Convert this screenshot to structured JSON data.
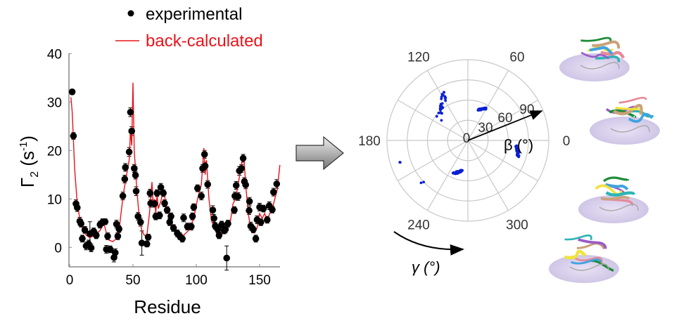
{
  "chart_data": [
    {
      "type": "scatter",
      "xlabel": "Residue",
      "ylabel": "Γ",
      "ylabel_sub": "2",
      "ylabel_unit": " (s",
      "ylabel_sup": "-1",
      "ylabel_close": ")",
      "xlim": [
        0,
        166
      ],
      "ylim": [
        -4,
        40
      ],
      "xticks": [
        0,
        50,
        100,
        150
      ],
      "yticks": [
        0,
        10,
        20,
        30,
        40
      ],
      "grid": false,
      "legend_position": "top",
      "series": [
        {
          "name": "experimental",
          "marker": "•",
          "color": "#000000",
          "points": [
            [
              2,
              32.1,
              0.5
            ],
            [
              3,
              23.0,
              0.7
            ],
            [
              5,
              9.0,
              0.8
            ],
            [
              6,
              8.2,
              0.8
            ],
            [
              8,
              5.4,
              0.8
            ],
            [
              9,
              4.9,
              0.7
            ],
            [
              10,
              1.8,
              0.7
            ],
            [
              12,
              3.6,
              0.7
            ],
            [
              13,
              0.3,
              0.8
            ],
            [
              15,
              0.7,
              0.8
            ],
            [
              16,
              2.8,
              2.5
            ],
            [
              17,
              -0.1,
              0.8
            ],
            [
              19,
              3.3,
              0.7
            ],
            [
              21,
              2.5,
              0.7
            ],
            [
              24,
              4.7,
              0.7
            ],
            [
              26,
              5.2,
              0.7
            ],
            [
              28,
              5.3,
              0.6
            ],
            [
              29,
              -0.4,
              0.8
            ],
            [
              30,
              2.3,
              0.7
            ],
            [
              32,
              -0.4,
              0.7
            ],
            [
              35,
              -2.1,
              0.9
            ],
            [
              36,
              -1.1,
              0.8
            ],
            [
              37,
              4.8,
              0.8
            ],
            [
              38,
              2.3,
              0.7
            ],
            [
              39,
              3.8,
              0.7
            ],
            [
              42,
              10.6,
              0.8
            ],
            [
              43.5,
              14.1,
              0.8
            ],
            [
              44,
              16.5,
              0.8
            ],
            [
              47,
              19.7,
              0.9
            ],
            [
              48,
              27.9,
              0.9
            ],
            [
              49,
              24.0,
              0.9
            ],
            [
              51,
              16.3,
              0.8
            ],
            [
              52,
              14.9,
              0.8
            ],
            [
              52.5,
              11.6,
              0.9
            ],
            [
              54,
              6.4,
              0.8
            ],
            [
              56,
              5.2,
              0.8
            ],
            [
              57,
              0.9,
              2.5
            ],
            [
              61,
              0.7,
              0.6
            ],
            [
              62,
              2.1,
              0.6
            ],
            [
              63.5,
              11.2,
              0.8
            ],
            [
              64,
              9.1,
              0.8
            ],
            [
              67,
              9.0,
              0.7
            ],
            [
              68,
              6.4,
              0.7
            ],
            [
              69,
              11.2,
              0.7
            ],
            [
              71,
              6.6,
              0.7
            ],
            [
              72,
              12.4,
              0.8
            ],
            [
              74,
              11.2,
              0.7
            ],
            [
              75,
              9.1,
              0.7
            ],
            [
              77,
              7.7,
              0.7
            ],
            [
              79,
              5.2,
              0.7
            ],
            [
              80,
              6.4,
              0.7
            ],
            [
              82,
              4.0,
              0.7
            ],
            [
              85,
              2.9,
              0.7
            ],
            [
              87,
              2.3,
              0.7
            ],
            [
              89,
              1.8,
              0.7
            ],
            [
              90,
              6.1,
              0.8
            ],
            [
              93,
              4.3,
              0.7
            ],
            [
              96,
              4.3,
              0.7
            ],
            [
              97,
              6.4,
              0.7
            ],
            [
              98,
              8.3,
              0.7
            ],
            [
              101,
              12.2,
              0.7
            ],
            [
              104,
              10.6,
              0.8
            ],
            [
              105,
              16.3,
              0.8
            ],
            [
              106.5,
              19.2,
              0.8
            ],
            [
              107,
              16.8,
              0.8
            ],
            [
              109,
              13.0,
              0.8
            ],
            [
              113,
              7.7,
              0.9
            ],
            [
              114,
              6.0,
              0.8
            ],
            [
              115,
              4.4,
              0.7
            ],
            [
              117,
              3.7,
              0.7
            ],
            [
              118,
              2.5,
              0.7
            ],
            [
              120,
              4.7,
              0.7
            ],
            [
              122,
              3.5,
              0.7
            ],
            [
              123,
              3.7,
              0.7
            ],
            [
              124,
              -2.2,
              2.5
            ],
            [
              125,
              4.9,
              0.7
            ],
            [
              130,
              7.7,
              0.7
            ],
            [
              130.5,
              10.6,
              0.8
            ],
            [
              131.5,
              12.8,
              0.8
            ],
            [
              133,
              10.5,
              0.8
            ],
            [
              134,
              15.8,
              0.9
            ],
            [
              135.7,
              16.3,
              0.8
            ],
            [
              137,
              18.4,
              0.8
            ],
            [
              138,
              13.6,
              0.8
            ],
            [
              139,
              12.9,
              0.8
            ],
            [
              141.7,
              7.6,
              0.8
            ],
            [
              142,
              9.5,
              0.8
            ],
            [
              143,
              4.4,
              0.8
            ],
            [
              145,
              3.7,
              0.7
            ],
            [
              147,
              1.8,
              0.7
            ],
            [
              148,
              5.7,
              0.8
            ],
            [
              150,
              8.3,
              0.8
            ],
            [
              151,
              5.2,
              0.7
            ],
            [
              153,
              8.0,
              0.7
            ],
            [
              156,
              5.7,
              0.7
            ],
            [
              157.6,
              8.6,
              0.8
            ],
            [
              160,
              7.8,
              0.7
            ],
            [
              161,
              11.4,
              0.8
            ],
            [
              163.5,
              13.1,
              0.9
            ]
          ]
        },
        {
          "name": "back-calculated",
          "marker": "—",
          "color": "#e8141b",
          "points": [
            [
              1,
              31
            ],
            [
              2,
              28
            ],
            [
              4,
              16
            ],
            [
              6,
              9
            ],
            [
              8,
              6
            ],
            [
              10,
              4
            ],
            [
              13,
              2.5
            ],
            [
              16,
              2
            ],
            [
              20,
              2.5
            ],
            [
              24,
              3.5
            ],
            [
              27,
              5
            ],
            [
              29,
              3
            ],
            [
              31,
              1.5
            ],
            [
              34,
              1.2
            ],
            [
              37,
              1.8
            ],
            [
              39,
              3.5
            ],
            [
              41,
              8
            ],
            [
              43,
              12
            ],
            [
              45,
              15
            ],
            [
              47,
              18
            ],
            [
              48,
              24
            ],
            [
              49,
              21
            ],
            [
              50,
              34
            ],
            [
              51,
              20
            ],
            [
              52,
              16
            ],
            [
              53,
              12
            ],
            [
              55,
              6
            ],
            [
              57,
              3.5
            ],
            [
              59,
              2.5
            ],
            [
              61,
              2.5
            ],
            [
              63,
              7
            ],
            [
              65,
              13.5
            ],
            [
              66,
              9
            ],
            [
              67,
              10
            ],
            [
              68,
              7
            ],
            [
              69,
              11
            ],
            [
              70,
              8
            ],
            [
              72,
              9.5
            ],
            [
              74,
              12
            ],
            [
              76,
              9
            ],
            [
              79,
              6.5
            ],
            [
              82,
              4
            ],
            [
              86,
              2.5
            ],
            [
              90,
              2.5
            ],
            [
              94,
              3.5
            ],
            [
              98,
              6
            ],
            [
              101,
              10
            ],
            [
              104,
              13
            ],
            [
              106,
              20.5
            ],
            [
              107,
              15
            ],
            [
              108,
              18
            ],
            [
              110,
              10
            ],
            [
              112,
              5.5
            ],
            [
              115,
              3.5
            ],
            [
              119,
              3
            ],
            [
              123,
              3
            ],
            [
              125,
              4
            ],
            [
              127,
              5.5
            ],
            [
              129,
              9
            ],
            [
              131,
              10
            ],
            [
              133,
              13
            ],
            [
              135,
              16
            ],
            [
              137,
              19
            ],
            [
              138,
              17
            ],
            [
              139,
              13
            ],
            [
              141,
              7
            ],
            [
              143,
              4
            ],
            [
              146,
              3
            ],
            [
              148,
              4
            ],
            [
              150,
              7
            ],
            [
              152,
              6
            ],
            [
              154,
              7
            ],
            [
              156,
              5.5
            ],
            [
              158,
              7
            ],
            [
              160,
              8
            ],
            [
              162,
              10
            ],
            [
              164,
              12
            ],
            [
              166,
              17
            ]
          ]
        }
      ]
    },
    {
      "type": "polar-scatter",
      "angular_label": "γ (°)",
      "radial_label": "β (°)",
      "angular_ticks": [
        "0",
        "60",
        "120",
        "180",
        "240",
        "300"
      ],
      "radial_ticks": [
        "0",
        "30",
        "60",
        "90"
      ],
      "radial_max": 120,
      "color": "#0a1fd6",
      "clusters": [
        {
          "gamma_range": [
            114,
            144
          ],
          "beta_range": [
            46,
            83
          ]
        },
        {
          "gamma_range": [
            60,
            72
          ],
          "beta_range": [
            46,
            56
          ]
        },
        {
          "gamma_range": [
            342,
            355
          ],
          "beta_range": [
            70,
            80
          ]
        },
        {
          "gamma_range": [
            245,
            260
          ],
          "beta_range": [
            43,
            56
          ]
        },
        {
          "gamma_range": [
            197,
            199
          ],
          "beta_range": [
            105,
            107
          ]
        },
        {
          "gamma_range": [
            222,
            226
          ],
          "beta_range": [
            90,
            95
          ]
        }
      ]
    }
  ],
  "colors": {
    "experimental": "#000000",
    "back_calculated": "#e8141b",
    "polar_points": "#0a1fd6",
    "grid": "#c8c8c8",
    "structure_disc": "#d9d2ec"
  },
  "icons": {
    "transition_arrow": "block-arrow-right",
    "structures": [
      "protein-cartoon",
      "protein-cartoon",
      "protein-cartoon",
      "protein-cartoon"
    ]
  }
}
